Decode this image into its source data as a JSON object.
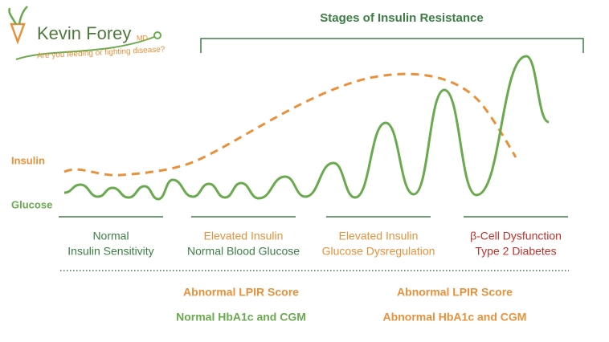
{
  "logo": {
    "name": "Kevin Forey",
    "suffix": "MD",
    "tagline": "Are you feeding or fighting disease?"
  },
  "title": "Stages of Insulin Resistance",
  "curve_labels": {
    "insulin": "Insulin",
    "glucose": "Glucose"
  },
  "stages": [
    {
      "line1": "Normal",
      "line2": "Insulin Sensitivity"
    },
    {
      "line1": "Elevated Insulin",
      "line2": "Normal Blood Glucose"
    },
    {
      "line1": "Elevated Insulin",
      "line2": "Glucose Dysregulation"
    },
    {
      "line1": "β-Cell Dysfunction",
      "line2": "Type 2 Diabetes"
    }
  ],
  "markers": [
    {
      "lpir": "Abnormal LPIR Score",
      "hba1c": "Normal HbA1c and CGM"
    },
    {
      "lpir": "Abnormal LPIR Score",
      "hba1c": "Abnormal HbA1c and CGM"
    }
  ]
}
